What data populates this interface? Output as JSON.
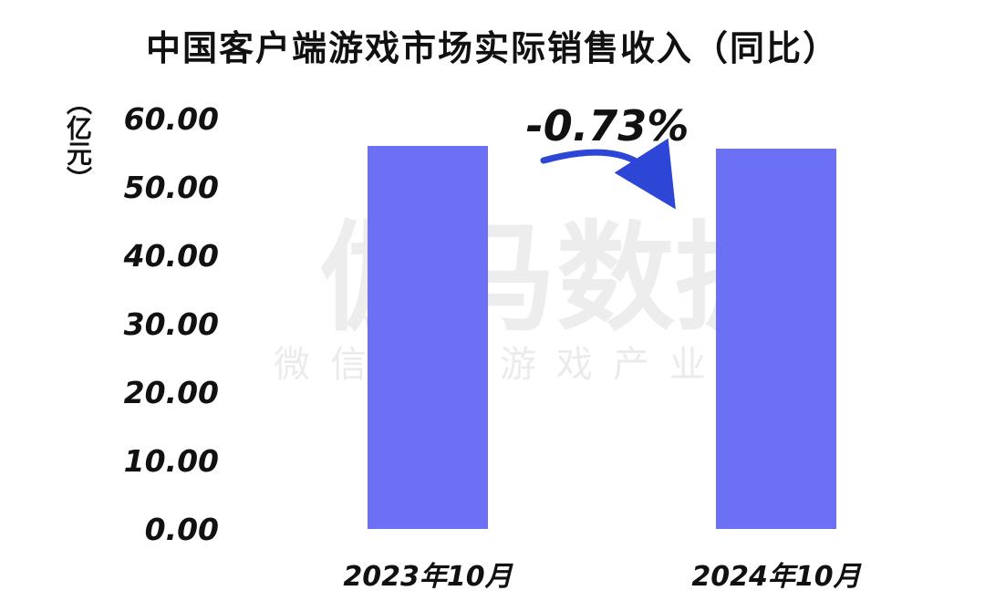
{
  "title": "中国客户端游戏市场实际销售收入（同比）",
  "unit_label": "（亿元）",
  "watermark": {
    "brand": "伽马数据",
    "subtitle": "微信号：游戏产业报告"
  },
  "colors": {
    "bar": "#6b70f5",
    "arrow": "#2d46d6",
    "text": "#111111"
  },
  "chart_data": {
    "type": "bar",
    "title": "中国客户端游戏市场实际销售收入（同比）",
    "ylabel": "（亿元）",
    "xlabel": "",
    "categories": [
      "2023年10月",
      "2024年10月"
    ],
    "values": [
      56.0,
      55.6
    ],
    "ylim": [
      0,
      60
    ],
    "yticks": [
      "0.00",
      "10.00",
      "20.00",
      "30.00",
      "40.00",
      "50.00",
      "60.00"
    ],
    "grid": false,
    "legend": "none",
    "annotation": {
      "text": "-0.73%",
      "arrow_from": "2023年10月",
      "arrow_to": "2024年10月"
    }
  }
}
